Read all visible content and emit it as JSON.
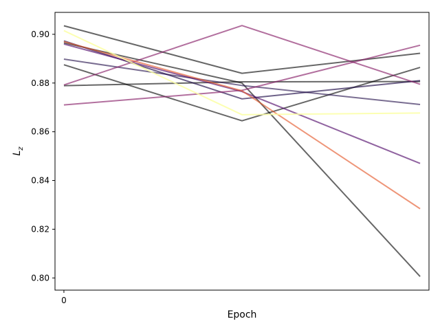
{
  "chart_data": {
    "type": "line",
    "title": "",
    "xlabel": "Epoch",
    "ylabel": "L",
    "ylabel_subscript": "z",
    "x": [
      0,
      1,
      2
    ],
    "xticks": [
      0
    ],
    "xtick_labels": [
      "0"
    ],
    "xlim": [
      -0.05,
      2.05
    ],
    "ylim": [
      0.795,
      0.909
    ],
    "yticks": [
      0.8,
      0.82,
      0.84,
      0.86,
      0.88,
      0.9
    ],
    "ytick_labels": [
      "0.80",
      "0.82",
      "0.84",
      "0.86",
      "0.88",
      "0.90"
    ],
    "grid": false,
    "legend": "none",
    "series": [
      {
        "values": [
          0.9035,
          0.884,
          0.8922
        ],
        "color": "#000000",
        "opacity": 0.6
      },
      {
        "values": [
          0.8875,
          0.8645,
          0.8864
        ],
        "color": "#000000",
        "opacity": 0.6
      },
      {
        "values": [
          0.8789,
          0.8805,
          0.8806
        ],
        "color": "#000000",
        "opacity": 0.6
      },
      {
        "values": [
          0.8965,
          0.88,
          0.8006
        ],
        "color": "#000000",
        "opacity": 0.6
      },
      {
        "values": [
          0.8973,
          0.8735,
          0.881
        ],
        "color": "#1f0c48",
        "opacity": 0.65
      },
      {
        "values": [
          0.8898,
          0.879,
          0.8712
        ],
        "color": "#1f0c48",
        "opacity": 0.6
      },
      {
        "values": [
          0.896,
          0.8765,
          0.847
        ],
        "color": "#550f6d",
        "opacity": 0.65
      },
      {
        "values": [
          0.871,
          0.877,
          0.8955
        ],
        "color": "#88226a",
        "opacity": 0.65
      },
      {
        "values": [
          0.8792,
          0.9036,
          0.8795
        ],
        "color": "#88226a",
        "opacity": 0.65
      },
      {
        "values": [
          0.897,
          0.8768,
          0.8284
        ],
        "color": "#e55c30",
        "opacity": 0.65
      },
      {
        "values": [
          0.9015,
          0.867,
          0.8677
        ],
        "color": "#fcffa4",
        "opacity": 0.85
      }
    ]
  }
}
